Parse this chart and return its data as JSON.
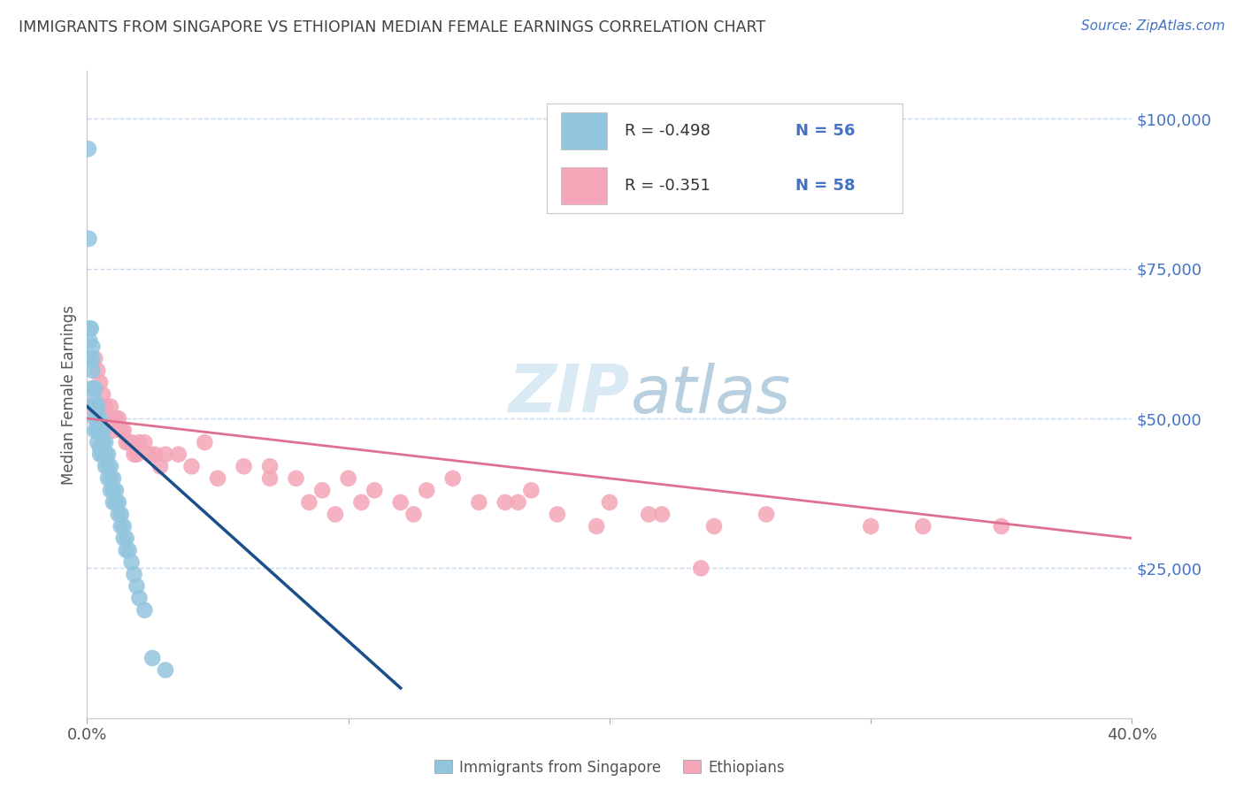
{
  "title": "IMMIGRANTS FROM SINGAPORE VS ETHIOPIAN MEDIAN FEMALE EARNINGS CORRELATION CHART",
  "source": "Source: ZipAtlas.com",
  "ylabel": "Median Female Earnings",
  "y_ticks": [
    25000,
    50000,
    75000,
    100000
  ],
  "y_tick_labels": [
    "$25,000",
    "$50,000",
    "$75,000",
    "$100,000"
  ],
  "x_min": 0.0,
  "x_max": 0.4,
  "y_min": 0,
  "y_max": 108000,
  "legend_r1": "-0.498",
  "legend_n1": "56",
  "legend_r2": "-0.351",
  "legend_n2": "58",
  "color_blue": "#92c5de",
  "color_pink": "#f4a6b8",
  "color_blue_line": "#1a4f8a",
  "color_pink_line": "#e07090",
  "color_title": "#404040",
  "color_source": "#4472c4",
  "color_ytick": "#4472c4",
  "color_legend_r": "#333333",
  "color_legend_n": "#4472c4",
  "watermark_color": "#daeaf5",
  "sg_x": [
    0.0005,
    0.0007,
    0.001,
    0.001,
    0.001,
    0.0015,
    0.002,
    0.002,
    0.002,
    0.002,
    0.003,
    0.003,
    0.003,
    0.003,
    0.003,
    0.004,
    0.004,
    0.004,
    0.004,
    0.005,
    0.005,
    0.005,
    0.005,
    0.006,
    0.006,
    0.006,
    0.007,
    0.007,
    0.007,
    0.008,
    0.008,
    0.008,
    0.009,
    0.009,
    0.009,
    0.01,
    0.01,
    0.01,
    0.011,
    0.011,
    0.012,
    0.012,
    0.013,
    0.013,
    0.014,
    0.014,
    0.015,
    0.015,
    0.016,
    0.017,
    0.018,
    0.019,
    0.02,
    0.022,
    0.025,
    0.03
  ],
  "sg_y": [
    95000,
    80000,
    63000,
    65000,
    60000,
    65000,
    60000,
    58000,
    55000,
    62000,
    55000,
    52000,
    50000,
    48000,
    53000,
    50000,
    48000,
    46000,
    52000,
    50000,
    48000,
    45000,
    44000,
    48000,
    46000,
    44000,
    46000,
    44000,
    42000,
    44000,
    42000,
    40000,
    42000,
    40000,
    38000,
    40000,
    38000,
    36000,
    38000,
    36000,
    36000,
    34000,
    34000,
    32000,
    32000,
    30000,
    30000,
    28000,
    28000,
    26000,
    24000,
    22000,
    20000,
    18000,
    10000,
    8000
  ],
  "eth_x": [
    0.001,
    0.002,
    0.003,
    0.004,
    0.005,
    0.006,
    0.007,
    0.008,
    0.009,
    0.01,
    0.011,
    0.012,
    0.013,
    0.014,
    0.015,
    0.016,
    0.017,
    0.018,
    0.019,
    0.02,
    0.022,
    0.024,
    0.026,
    0.028,
    0.03,
    0.035,
    0.04,
    0.045,
    0.05,
    0.06,
    0.07,
    0.08,
    0.09,
    0.1,
    0.11,
    0.12,
    0.13,
    0.14,
    0.15,
    0.16,
    0.17,
    0.18,
    0.2,
    0.22,
    0.24,
    0.26,
    0.3,
    0.32,
    0.35,
    0.07,
    0.085,
    0.095,
    0.105,
    0.125,
    0.165,
    0.195,
    0.215,
    0.235
  ],
  "eth_y": [
    52000,
    55000,
    60000,
    58000,
    56000,
    54000,
    52000,
    50000,
    52000,
    48000,
    50000,
    50000,
    48000,
    48000,
    46000,
    46000,
    46000,
    44000,
    44000,
    46000,
    46000,
    44000,
    44000,
    42000,
    44000,
    44000,
    42000,
    46000,
    40000,
    42000,
    42000,
    40000,
    38000,
    40000,
    38000,
    36000,
    38000,
    40000,
    36000,
    36000,
    38000,
    34000,
    36000,
    34000,
    32000,
    34000,
    32000,
    32000,
    32000,
    40000,
    36000,
    34000,
    36000,
    34000,
    36000,
    32000,
    34000,
    25000
  ]
}
